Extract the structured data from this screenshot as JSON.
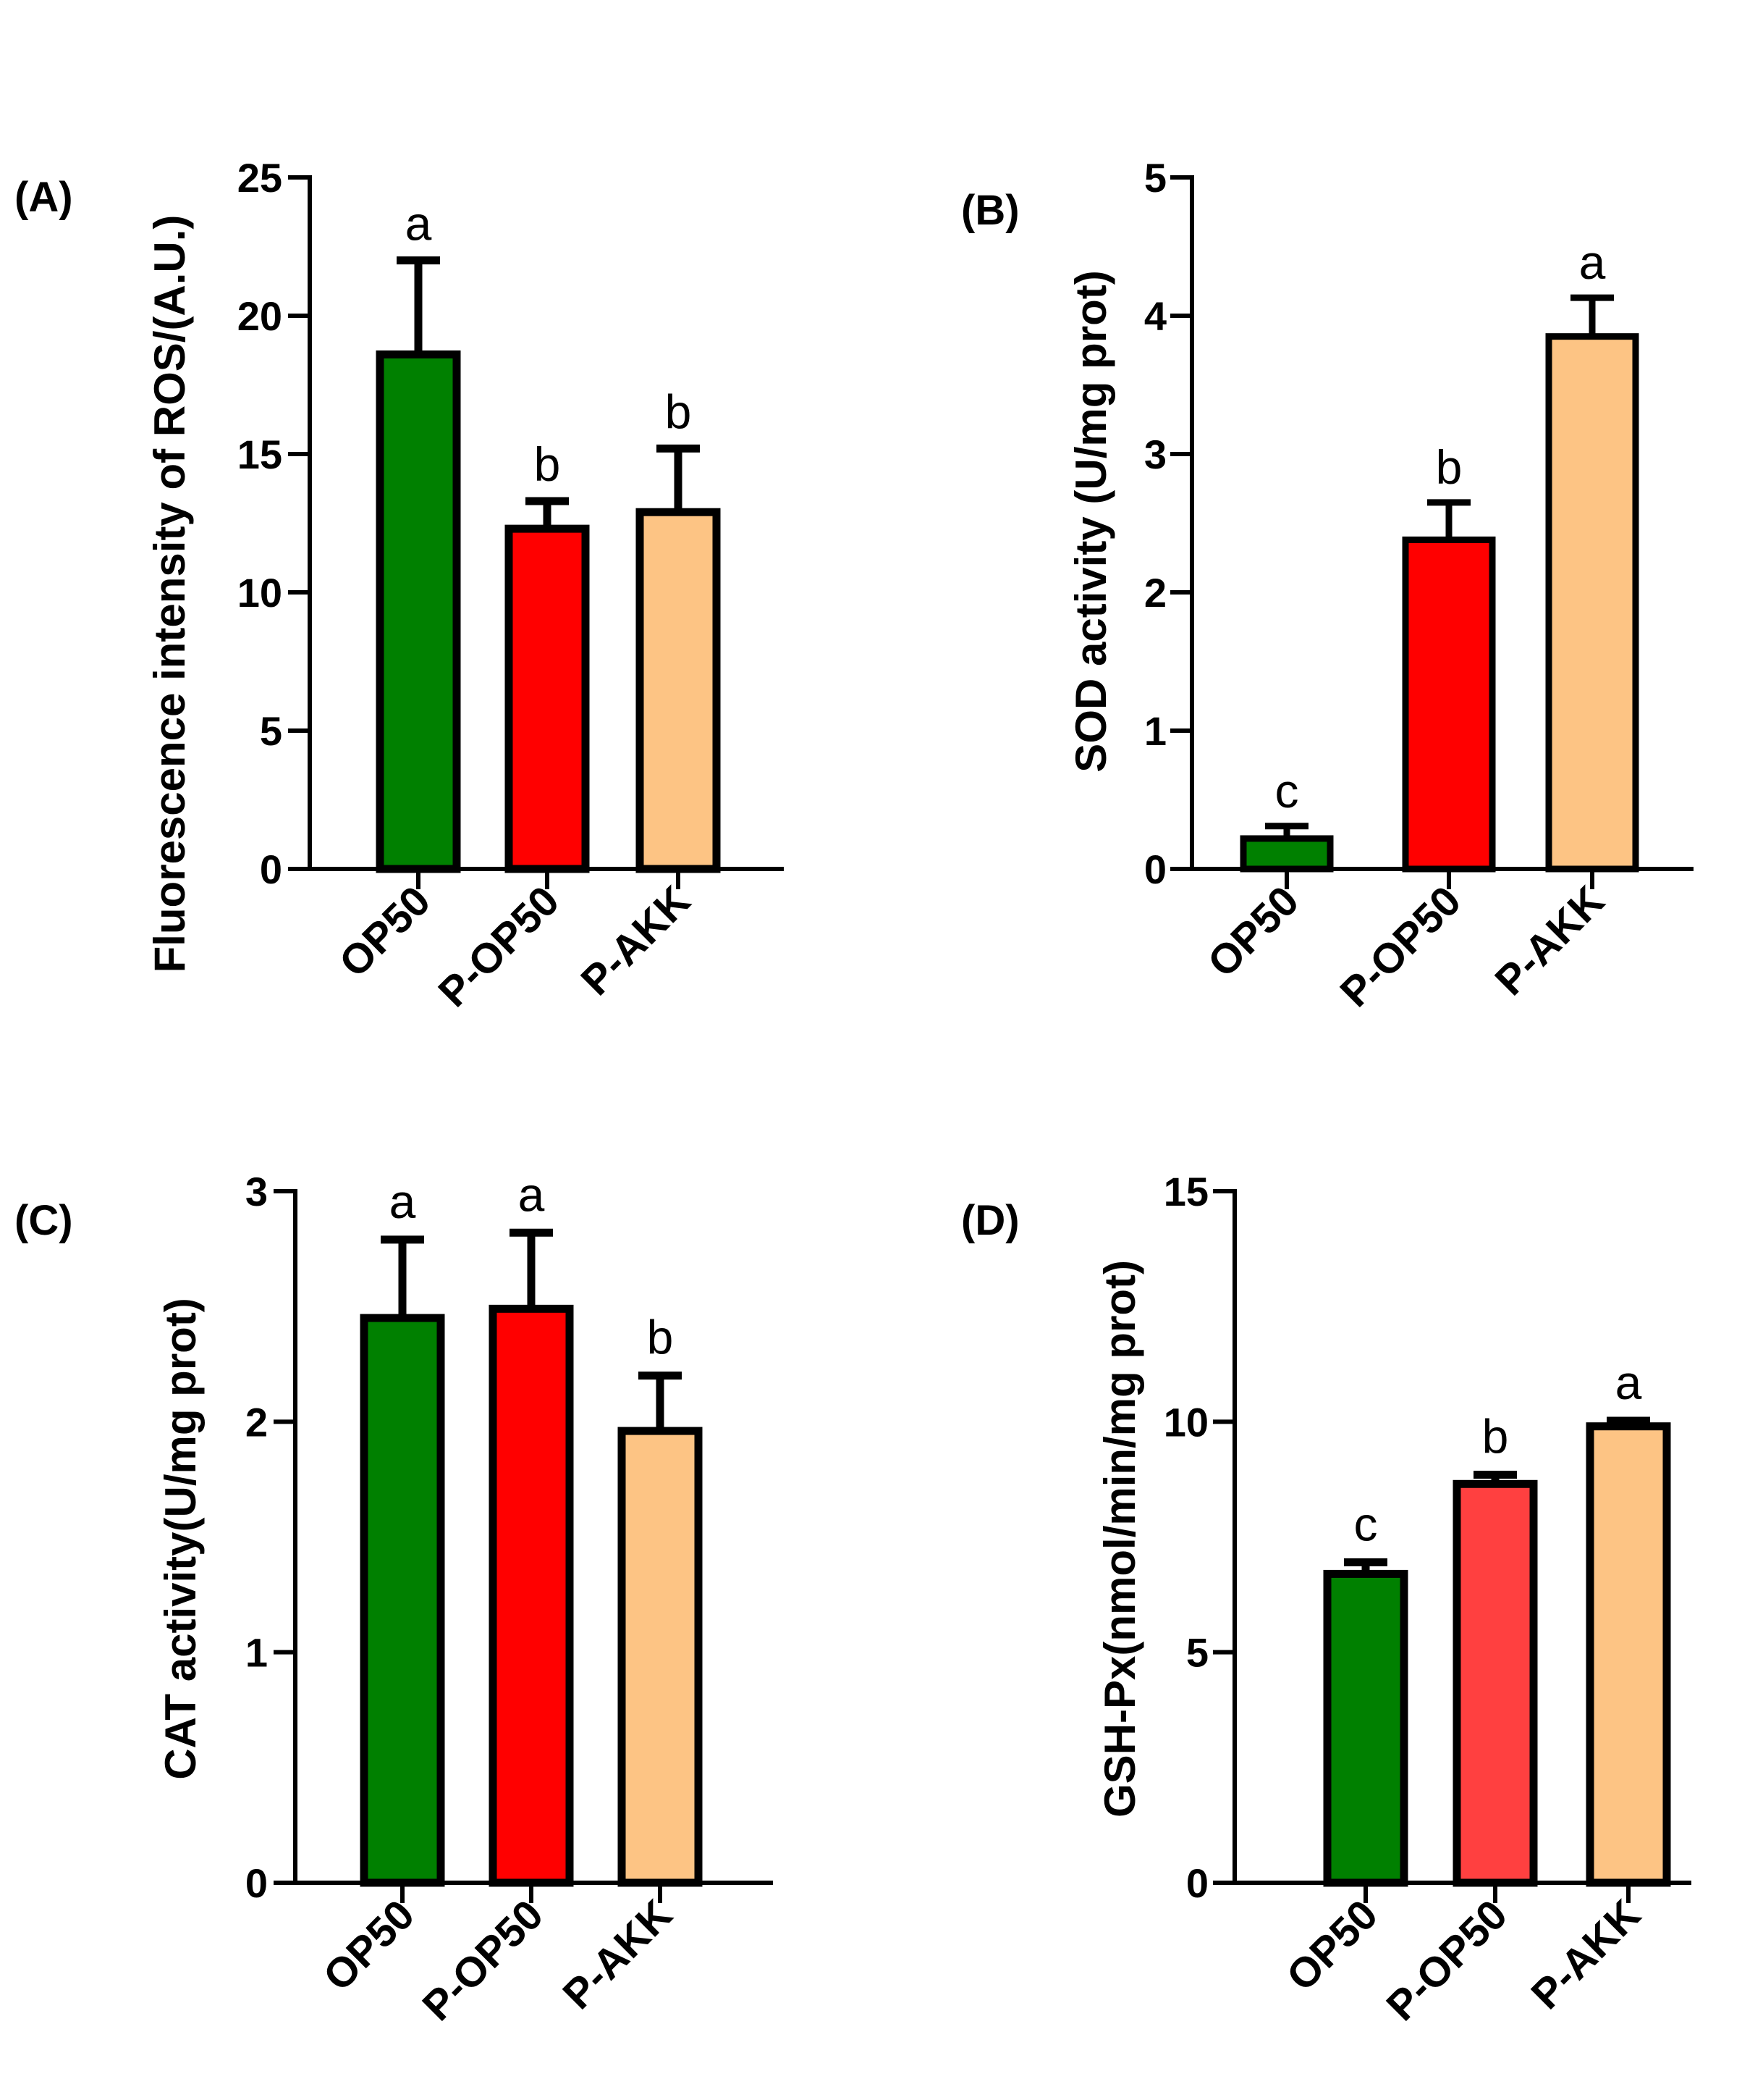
{
  "figure": {
    "panels": [
      "(A)",
      "(B)",
      "(C)",
      "(D)"
    ]
  },
  "chart_data": [
    {
      "type": "bar",
      "panel": "(A)",
      "ylabel": "Fluorescence intensity of ROS/(A.U.)",
      "xlabel": "",
      "categories": [
        "OP50",
        "P-OP50",
        "P-AKK"
      ],
      "values": [
        18.6,
        12.3,
        12.9
      ],
      "errors": [
        3.4,
        1.0,
        2.3
      ],
      "significance": [
        "a",
        "b",
        "b"
      ],
      "colors": [
        "#008000",
        "#ff0000",
        "#fdc484"
      ],
      "ylim": [
        0,
        25
      ],
      "yticks": [
        0,
        5,
        10,
        15,
        20,
        25
      ]
    },
    {
      "type": "bar",
      "panel": "(B)",
      "ylabel": "SOD  activity (U/mg prot)",
      "xlabel": "",
      "categories": [
        "OP50",
        "P-OP50",
        "P-AKK"
      ],
      "values": [
        0.22,
        2.38,
        3.85
      ],
      "errors": [
        0.09,
        0.27,
        0.28
      ],
      "significance": [
        "c",
        "b",
        "a"
      ],
      "colors": [
        "#008000",
        "#ff0000",
        "#fdc484"
      ],
      "ylim": [
        0,
        5
      ],
      "yticks": [
        0,
        1,
        2,
        3,
        4,
        5
      ]
    },
    {
      "type": "bar",
      "panel": "(C)",
      "ylabel": "CAT activity(U/mg prot)",
      "xlabel": "",
      "categories": [
        "OP50",
        "P-OP50",
        "P-AKK"
      ],
      "values": [
        2.45,
        2.49,
        1.96
      ],
      "errors": [
        0.34,
        0.33,
        0.24
      ],
      "significance": [
        "a",
        "a",
        "b"
      ],
      "colors": [
        "#008000",
        "#ff0000",
        "#fdc484"
      ],
      "ylim": [
        0,
        3
      ],
      "yticks": [
        0,
        1,
        2,
        3
      ]
    },
    {
      "type": "bar",
      "panel": "(D)",
      "ylabel": "GSH-Px(nmol/min/mg prot)",
      "xlabel": "",
      "categories": [
        "OP50",
        "P-OP50",
        "P-AKK"
      ],
      "values": [
        6.7,
        8.65,
        9.9
      ],
      "errors": [
        0.25,
        0.2,
        0.12
      ],
      "significance": [
        "c",
        "b",
        "a"
      ],
      "colors": [
        "#008000",
        "#ff4040",
        "#fdc484"
      ],
      "ylim": [
        0,
        15
      ],
      "yticks": [
        0,
        5,
        10,
        15
      ]
    }
  ]
}
